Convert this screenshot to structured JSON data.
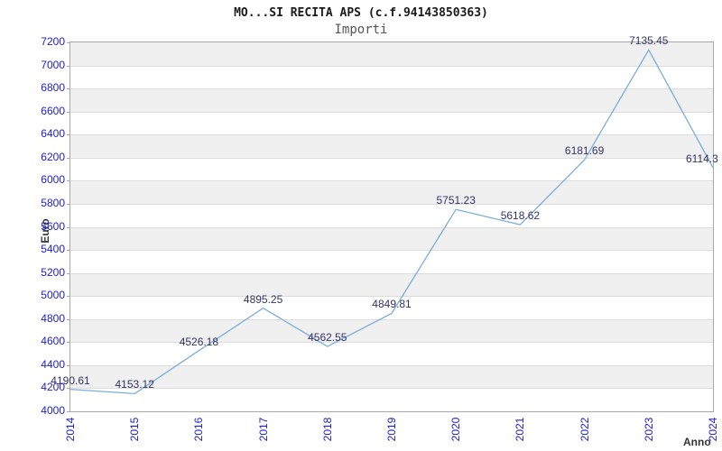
{
  "title": "MO...SI RECITA APS (c.f.94143850363)",
  "subtitle": "Importi",
  "chart_data": {
    "type": "line",
    "x": [
      2014,
      2015,
      2016,
      2017,
      2018,
      2019,
      2020,
      2021,
      2022,
      2023,
      2024
    ],
    "values": [
      4190.61,
      4153.12,
      4526.18,
      4895.25,
      4562.55,
      4849.81,
      5751.23,
      5618.62,
      6181.69,
      7135.45,
      6114.3
    ],
    "point_labels": [
      "4190.61",
      "4153.12",
      "4526.18",
      "4895.25",
      "4562.55",
      "4849.81",
      "5751.23",
      "5618.62",
      "6181.69",
      "7135.45",
      "6114.3"
    ],
    "yticks": [
      4000,
      4200,
      4400,
      4600,
      4800,
      5000,
      5200,
      5400,
      5600,
      5800,
      6000,
      6200,
      6400,
      6600,
      6800,
      7000,
      7200
    ],
    "ylim": [
      4000,
      7200
    ],
    "ytick_step": 200,
    "xlabel": "Anno",
    "ylabel": "Euro",
    "grid": true,
    "banded_background": true,
    "legend": "none"
  },
  "colors": {
    "title": "#1a1a1a",
    "subtitle": "#555555",
    "tick_label": "#1c1cd2",
    "point_label": "#333366",
    "axis_title": "#333333",
    "line": "#7aaede",
    "band": "#f0f0f0",
    "gridline": "#dcdcdc",
    "border": "#a8a8a8",
    "background": "#ffffff"
  }
}
